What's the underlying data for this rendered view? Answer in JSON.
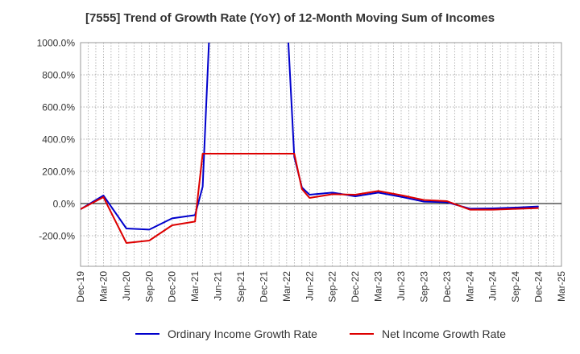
{
  "chart_data": {
    "type": "line",
    "title": "[7555]  Trend of Growth Rate (YoY) of 12-Month Moving Sum of Incomes",
    "xlabel": "",
    "ylabel": "",
    "ylim": [
      -390,
      1000
    ],
    "yticks": [
      -200,
      0,
      200,
      400,
      600,
      800,
      1000
    ],
    "ytick_labels": [
      "-200.0%",
      "0.0%",
      "200.0%",
      "400.0%",
      "600.0%",
      "800.0%",
      "1000.0%"
    ],
    "categories": [
      "Dec-19",
      "Jan-20",
      "Feb-20",
      "Mar-20",
      "Apr-20",
      "May-20",
      "Jun-20",
      "Jul-20",
      "Aug-20",
      "Sep-20",
      "Oct-20",
      "Nov-20",
      "Dec-20",
      "Jan-21",
      "Feb-21",
      "Mar-21",
      "Apr-21",
      "May-21",
      "Jun-21",
      "Jul-21",
      "Aug-21",
      "Sep-21",
      "Oct-21",
      "Nov-21",
      "Dec-21",
      "Jan-22",
      "Feb-22",
      "Mar-22",
      "Apr-22",
      "May-22",
      "Jun-22",
      "Jul-22",
      "Aug-22",
      "Sep-22",
      "Oct-22",
      "Nov-22",
      "Dec-22",
      "Jan-23",
      "Feb-23",
      "Mar-23",
      "Apr-23",
      "May-23",
      "Jun-23",
      "Jul-23",
      "Aug-23",
      "Sep-23",
      "Oct-23",
      "Nov-23",
      "Dec-23",
      "Jan-24",
      "Feb-24",
      "Mar-24",
      "Apr-24",
      "May-24",
      "Jun-24",
      "Jul-24",
      "Aug-24",
      "Sep-24",
      "Oct-24",
      "Nov-24",
      "Dec-24",
      "Jan-25",
      "Feb-25",
      "Mar-25"
    ],
    "xtick_labels": [
      "Dec-19",
      "Mar-20",
      "Jun-20",
      "Sep-20",
      "Dec-20",
      "Mar-21",
      "Jun-21",
      "Sep-21",
      "Dec-21",
      "Mar-22",
      "Jun-22",
      "Sep-22",
      "Dec-22",
      "Mar-23",
      "Jun-23",
      "Sep-23",
      "Dec-23",
      "Mar-24",
      "Jun-24",
      "Sep-24",
      "Dec-24",
      "Mar-25"
    ],
    "grid": true,
    "legend_placement": "bottom",
    "series": [
      {
        "name": "Ordinary Income Growth Rate",
        "color": "#0000cc",
        "values": [
          -35,
          null,
          null,
          50,
          null,
          null,
          -155,
          null,
          null,
          -162,
          null,
          null,
          -92,
          null,
          null,
          -72,
          105,
          1200,
          null,
          null,
          null,
          null,
          null,
          null,
          null,
          null,
          null,
          1200,
          290,
          100,
          55,
          null,
          null,
          68,
          null,
          null,
          45,
          null,
          null,
          68,
          null,
          null,
          42,
          null,
          null,
          12,
          null,
          null,
          8,
          null,
          null,
          -32,
          null,
          null,
          -30,
          null,
          null,
          -25,
          null,
          null,
          -18,
          null,
          null,
          null
        ]
      },
      {
        "name": "Net Income Growth Rate",
        "color": "#dd0000",
        "values": [
          -35,
          null,
          null,
          40,
          null,
          null,
          -245,
          null,
          null,
          -230,
          null,
          null,
          -135,
          null,
          null,
          -112,
          310,
          null,
          null,
          null,
          null,
          null,
          null,
          null,
          null,
          null,
          null,
          null,
          310,
          90,
          35,
          null,
          null,
          58,
          null,
          null,
          55,
          null,
          null,
          78,
          null,
          null,
          52,
          null,
          null,
          22,
          null,
          null,
          15,
          null,
          null,
          -38,
          null,
          null,
          -38,
          null,
          null,
          -33,
          null,
          null,
          -28,
          null,
          null,
          null
        ]
      }
    ]
  },
  "legend": {
    "ordinary_label": "Ordinary Income Growth Rate",
    "net_label": "Net Income Growth Rate"
  }
}
